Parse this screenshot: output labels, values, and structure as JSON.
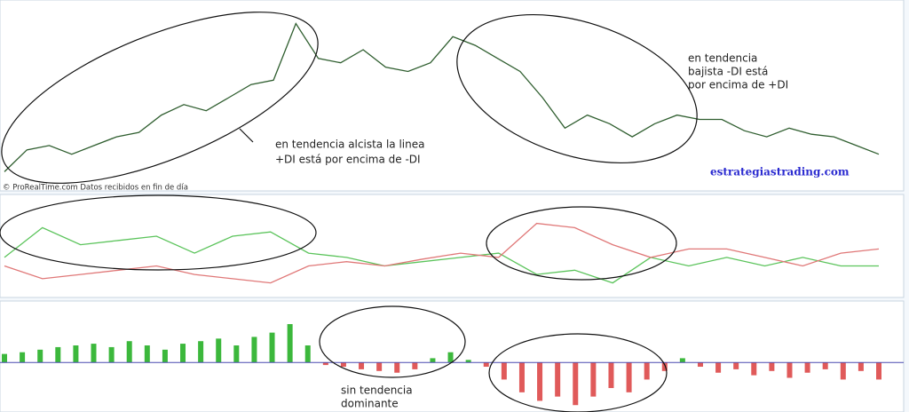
{
  "chart_data": [
    {
      "type": "line",
      "series": [
        {
          "color": "#2f5e2f",
          "values": [
            20,
            45,
            50,
            40,
            50,
            60,
            65,
            85,
            97,
            90,
            105,
            120,
            125,
            190,
            150,
            145,
            160,
            140,
            135,
            145,
            175,
            165,
            150,
            135,
            105,
            70,
            85,
            75,
            60,
            75,
            85,
            80,
            80,
            67,
            60,
            70,
            63,
            60,
            50,
            40
          ]
        }
      ],
      "ylim": [
        0,
        215
      ]
    },
    {
      "type": "line",
      "series": [
        {
          "color": "#5cc45c",
          "values": [
            45,
            80,
            60,
            65,
            70,
            50,
            70,
            75,
            50,
            45,
            35,
            40,
            45,
            50,
            25,
            30,
            15,
            45,
            35,
            45,
            35,
            45,
            35,
            35
          ]
        },
        {
          "color": "#e07878",
          "values": [
            35,
            20,
            25,
            30,
            35,
            25,
            20,
            15,
            35,
            40,
            35,
            43,
            50,
            45,
            85,
            80,
            60,
            45,
            55,
            55,
            45,
            35,
            50,
            55
          ]
        }
      ],
      "ylim": [
        0,
        117
      ]
    },
    {
      "type": "histogram-bar",
      "positive_color": "#3cb83c",
      "negative_color": "#e05a5a",
      "values": [
        10,
        12,
        15,
        18,
        20,
        22,
        18,
        25,
        20,
        15,
        22,
        25,
        28,
        20,
        30,
        35,
        45,
        20,
        -3,
        -5,
        -8,
        -10,
        -12,
        -8,
        5,
        12,
        3,
        -5,
        -20,
        -35,
        -45,
        -40,
        -50,
        -40,
        -30,
        -35,
        -20,
        -10,
        5,
        -5,
        -12,
        -8,
        -15,
        -10,
        -18,
        -12,
        -8,
        -20,
        -10,
        -20
      ],
      "ylim": [
        -56,
        70
      ]
    }
  ],
  "credit": "© ProRealTime.com Datos recibidos en fin de día",
  "watermark": "estrategiastrading.com",
  "annotations": {
    "uptrend": [
      "en tendencia alcista la linea",
      "+DI está por encima de -DI"
    ],
    "downtrend": [
      "en tendencia",
      "bajista -DI está",
      "por encima de +DI"
    ],
    "no_trend": [
      "sin tendencia",
      "dominante"
    ]
  }
}
